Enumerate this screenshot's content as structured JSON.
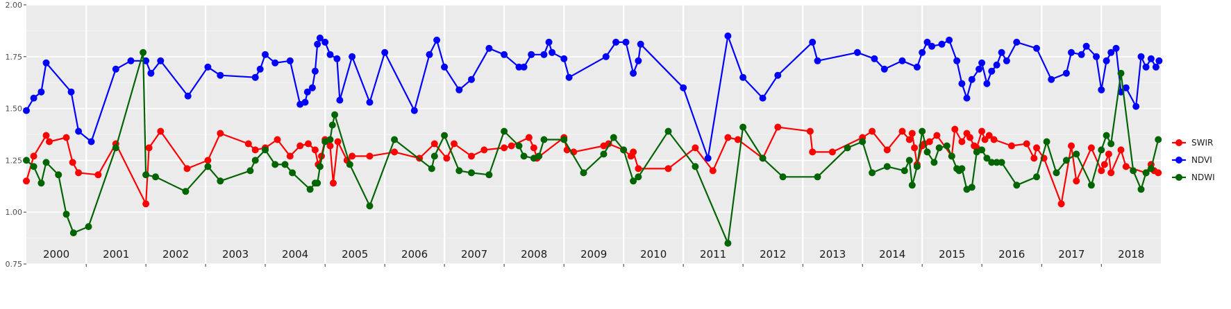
{
  "chart_data": {
    "type": "line",
    "title": "",
    "xlabel": "",
    "ylabel": "",
    "ylim": [
      0.75,
      2.0
    ],
    "y_ticks": [
      "0.75",
      "1.00",
      "1.25",
      "1.50",
      "1.75",
      "2.00"
    ],
    "x_range": [
      "2000-01-01",
      "2018-12-31"
    ],
    "x_ticks": [
      "2000",
      "2001",
      "2002",
      "2003",
      "2004",
      "2005",
      "2006",
      "2007",
      "2008",
      "2009",
      "2010",
      "2011",
      "2012",
      "2013",
      "2014",
      "2015",
      "2016",
      "2017",
      "2018"
    ],
    "grid": true,
    "legend_position": "right",
    "background": "#ebebeb",
    "series": [
      {
        "name": "SWIR",
        "color": "#ff0000",
        "x": [
          "2000-01-01",
          "2000-02-15",
          "2000-05-01",
          "2000-05-20",
          "2000-09-01",
          "2000-10-10",
          "2000-11-15",
          "2001-03-15",
          "2001-07-01",
          "2002-01-01",
          "2002-01-20",
          "2002-04-01",
          "2002-09-10",
          "2003-01-15",
          "2003-04-01",
          "2003-09-20",
          "2003-11-01",
          "2004-01-01",
          "2004-03-15",
          "2004-06-01",
          "2004-08-01",
          "2004-09-20",
          "2004-11-01",
          "2004-11-20",
          "2004-12-10",
          "2005-01-01",
          "2005-02-01",
          "2005-02-20",
          "2005-03-20",
          "2005-05-15",
          "2005-06-15",
          "2005-10-01",
          "2006-03-01",
          "2006-08-01",
          "2006-11-01",
          "2007-01-15",
          "2007-03-01",
          "2007-06-15",
          "2007-09-01",
          "2008-01-01",
          "2008-02-15",
          "2008-06-01",
          "2008-07-01",
          "2008-07-20",
          "2009-01-01",
          "2009-01-20",
          "2009-03-01",
          "2009-09-01",
          "2009-10-01",
          "2010-01-01",
          "2010-02-15",
          "2010-03-01",
          "2010-04-01",
          "2010-10-01",
          "2011-03-15",
          "2011-07-01",
          "2011-10-01",
          "2011-12-01",
          "2012-05-01",
          "2012-08-01",
          "2013-02-15",
          "2013-03-01",
          "2013-07-01",
          "2014-01-01",
          "2014-03-01",
          "2014-06-01",
          "2014-09-01",
          "2014-10-15",
          "2014-11-01",
          "2014-11-15",
          "2014-12-01",
          "2015-01-01",
          "2015-01-15",
          "2015-02-15",
          "2015-04-01",
          "2015-07-01",
          "2015-07-20",
          "2015-09-01",
          "2015-10-01",
          "2015-10-20",
          "2015-11-15",
          "2015-12-01",
          "2016-01-01",
          "2016-01-20",
          "2016-02-15",
          "2016-03-15",
          "2016-07-01",
          "2016-10-01",
          "2016-11-15",
          "2016-12-01",
          "2017-01-15",
          "2017-05-01",
          "2017-07-01",
          "2017-08-01",
          "2017-11-01",
          "2018-01-01",
          "2018-01-20",
          "2018-02-15",
          "2018-03-01",
          "2018-05-01",
          "2018-06-01",
          "2018-10-01",
          "2018-11-01",
          "2018-11-20",
          "2018-12-15"
        ],
        "values": [
          1.15,
          1.27,
          1.37,
          1.34,
          1.36,
          1.24,
          1.19,
          1.18,
          1.33,
          1.04,
          1.31,
          1.39,
          1.21,
          1.25,
          1.38,
          1.33,
          1.3,
          1.31,
          1.35,
          1.27,
          1.32,
          1.33,
          1.3,
          1.23,
          1.27,
          1.35,
          1.32,
          1.14,
          1.34,
          1.25,
          1.27,
          1.27,
          1.29,
          1.26,
          1.33,
          1.26,
          1.33,
          1.27,
          1.3,
          1.31,
          1.32,
          1.36,
          1.31,
          1.26,
          1.36,
          1.3,
          1.29,
          1.32,
          1.33,
          1.3,
          1.27,
          1.29,
          1.21,
          1.21,
          1.31,
          1.2,
          1.36,
          1.35,
          1.26,
          1.41,
          1.39,
          1.29,
          1.29,
          1.36,
          1.39,
          1.3,
          1.39,
          1.35,
          1.38,
          1.31,
          1.23,
          1.32,
          1.33,
          1.34,
          1.37,
          1.27,
          1.4,
          1.34,
          1.38,
          1.36,
          1.32,
          1.31,
          1.39,
          1.35,
          1.37,
          1.35,
          1.32,
          1.33,
          1.26,
          1.31,
          1.26,
          1.04,
          1.32,
          1.15,
          1.31,
          1.2,
          1.23,
          1.28,
          1.19,
          1.3,
          1.22,
          1.19,
          1.23,
          1.2,
          1.19
        ]
      },
      {
        "name": "NDVI",
        "color": "#0000ff",
        "x": [
          "2000-01-01",
          "2000-02-15",
          "2000-04-01",
          "2000-05-01",
          "2000-10-01",
          "2000-11-15",
          "2001-02-01",
          "2001-07-01",
          "2001-10-01",
          "2002-01-01",
          "2002-02-01",
          "2002-04-01",
          "2002-09-15",
          "2003-01-15",
          "2003-04-01",
          "2003-11-01",
          "2003-12-01",
          "2004-01-01",
          "2004-03-01",
          "2004-06-01",
          "2004-08-01",
          "2004-09-01",
          "2004-09-15",
          "2004-10-15",
          "2004-11-01",
          "2004-11-15",
          "2004-12-01",
          "2005-01-01",
          "2005-02-01",
          "2005-03-15",
          "2005-04-01",
          "2005-06-15",
          "2005-10-01",
          "2006-01-01",
          "2006-07-01",
          "2006-10-01",
          "2006-11-15",
          "2007-01-01",
          "2007-04-01",
          "2007-06-15",
          "2007-10-01",
          "2008-01-01",
          "2008-04-01",
          "2008-05-01",
          "2008-06-15",
          "2008-09-01",
          "2008-10-01",
          "2008-10-20",
          "2009-01-01",
          "2009-02-01",
          "2009-09-15",
          "2009-11-15",
          "2010-01-15",
          "2010-03-01",
          "2010-04-01",
          "2010-04-15",
          "2011-01-01",
          "2011-06-01",
          "2011-10-01",
          "2012-01-01",
          "2012-05-01",
          "2012-08-01",
          "2013-03-01",
          "2013-04-01",
          "2013-12-01",
          "2014-03-15",
          "2014-05-15",
          "2014-09-01",
          "2014-12-01",
          "2015-01-01",
          "2015-02-01",
          "2015-03-01",
          "2015-05-01",
          "2015-06-15",
          "2015-08-01",
          "2015-09-01",
          "2015-10-01",
          "2015-11-01",
          "2015-12-15",
          "2016-01-01",
          "2016-02-01",
          "2016-03-01",
          "2016-04-01",
          "2016-05-01",
          "2016-06-01",
          "2016-08-01",
          "2016-12-01",
          "2017-03-01",
          "2017-06-01",
          "2017-07-01",
          "2017-09-01",
          "2017-10-01",
          "2017-12-01",
          "2018-01-01",
          "2018-02-01",
          "2018-03-01",
          "2018-04-01",
          "2018-05-01",
          "2018-06-01",
          "2018-08-01",
          "2018-09-01",
          "2018-10-01",
          "2018-11-01",
          "2018-12-01",
          "2018-12-20"
        ],
        "values": [
          1.49,
          1.55,
          1.58,
          1.72,
          1.58,
          1.39,
          1.34,
          1.69,
          1.73,
          1.73,
          1.67,
          1.73,
          1.56,
          1.7,
          1.66,
          1.65,
          1.69,
          1.76,
          1.72,
          1.73,
          1.52,
          1.53,
          1.58,
          1.6,
          1.68,
          1.81,
          1.84,
          1.82,
          1.76,
          1.74,
          1.54,
          1.75,
          1.53,
          1.77,
          1.49,
          1.76,
          1.83,
          1.7,
          1.59,
          1.64,
          1.79,
          1.76,
          1.7,
          1.7,
          1.76,
          1.76,
          1.82,
          1.77,
          1.74,
          1.65,
          1.75,
          1.82,
          1.82,
          1.67,
          1.73,
          1.81,
          1.6,
          1.26,
          1.85,
          1.65,
          1.55,
          1.66,
          1.82,
          1.73,
          1.77,
          1.74,
          1.69,
          1.73,
          1.7,
          1.77,
          1.82,
          1.8,
          1.81,
          1.83,
          1.73,
          1.62,
          1.55,
          1.64,
          1.69,
          1.72,
          1.62,
          1.68,
          1.71,
          1.77,
          1.73,
          1.82,
          1.79,
          1.64,
          1.67,
          1.77,
          1.76,
          1.8,
          1.75,
          1.59,
          1.73,
          1.77,
          1.79,
          1.58,
          1.6,
          1.51,
          1.75,
          1.7,
          1.74,
          1.7,
          1.73
        ]
      },
      {
        "name": "NDWI",
        "color": "#006400",
        "x": [
          "2000-01-01",
          "2000-02-15",
          "2000-04-01",
          "2000-05-01",
          "2000-07-15",
          "2000-09-01",
          "2000-10-15",
          "2001-01-15",
          "2001-07-01",
          "2001-12-15",
          "2002-01-01",
          "2002-03-01",
          "2002-09-01",
          "2003-01-15",
          "2003-04-01",
          "2003-10-01",
          "2003-11-01",
          "2004-01-01",
          "2004-03-01",
          "2004-05-01",
          "2004-06-15",
          "2004-10-01",
          "2004-11-01",
          "2004-11-15",
          "2004-12-01",
          "2005-01-01",
          "2005-02-01",
          "2005-02-15",
          "2005-03-01",
          "2005-06-01",
          "2005-10-01",
          "2006-03-01",
          "2006-10-15",
          "2006-11-01",
          "2007-01-01",
          "2007-04-01",
          "2007-06-15",
          "2007-10-01",
          "2008-01-01",
          "2008-04-01",
          "2008-05-01",
          "2008-07-01",
          "2008-08-01",
          "2008-09-01",
          "2009-01-01",
          "2009-05-01",
          "2009-09-01",
          "2009-11-01",
          "2010-01-01",
          "2010-03-01",
          "2010-04-01",
          "2010-10-01",
          "2011-03-15",
          "2011-10-01",
          "2012-01-01",
          "2012-05-01",
          "2012-09-01",
          "2013-04-01",
          "2013-10-01",
          "2014-01-01",
          "2014-03-01",
          "2014-06-01",
          "2014-09-15",
          "2014-10-15",
          "2014-11-01",
          "2014-12-01",
          "2015-01-01",
          "2015-02-01",
          "2015-03-15",
          "2015-04-15",
          "2015-06-01",
          "2015-07-01",
          "2015-08-01",
          "2015-08-15",
          "2015-09-01",
          "2015-10-01",
          "2015-11-01",
          "2015-12-01",
          "2016-01-01",
          "2016-02-01",
          "2016-03-01",
          "2016-04-01",
          "2016-05-01",
          "2016-08-01",
          "2016-12-01",
          "2017-02-01",
          "2017-04-01",
          "2017-06-01",
          "2017-08-01",
          "2017-11-01",
          "2018-01-01",
          "2018-02-01",
          "2018-03-01",
          "2018-05-01",
          "2018-07-15",
          "2018-09-01",
          "2018-10-01",
          "2018-11-01",
          "2018-12-15"
        ],
        "values": [
          1.25,
          1.22,
          1.14,
          1.24,
          1.18,
          0.99,
          0.9,
          0.93,
          1.31,
          1.77,
          1.18,
          1.17,
          1.1,
          1.22,
          1.15,
          1.2,
          1.25,
          1.3,
          1.23,
          1.23,
          1.19,
          1.11,
          1.14,
          1.14,
          1.22,
          1.34,
          1.35,
          1.42,
          1.47,
          1.23,
          1.03,
          1.35,
          1.21,
          1.27,
          1.37,
          1.2,
          1.19,
          1.18,
          1.39,
          1.32,
          1.27,
          1.26,
          1.27,
          1.35,
          1.35,
          1.19,
          1.28,
          1.36,
          1.3,
          1.15,
          1.17,
          1.39,
          1.22,
          0.85,
          1.41,
          1.26,
          1.17,
          1.17,
          1.31,
          1.34,
          1.19,
          1.22,
          1.2,
          1.25,
          1.13,
          1.22,
          1.39,
          1.29,
          1.24,
          1.31,
          1.32,
          1.27,
          1.21,
          1.2,
          1.21,
          1.11,
          1.12,
          1.29,
          1.3,
          1.26,
          1.24,
          1.24,
          1.24,
          1.13,
          1.17,
          1.34,
          1.19,
          1.25,
          1.28,
          1.13,
          1.3,
          1.37,
          1.33,
          1.67,
          1.2,
          1.11,
          1.19,
          1.21,
          1.35
        ]
      }
    ]
  }
}
